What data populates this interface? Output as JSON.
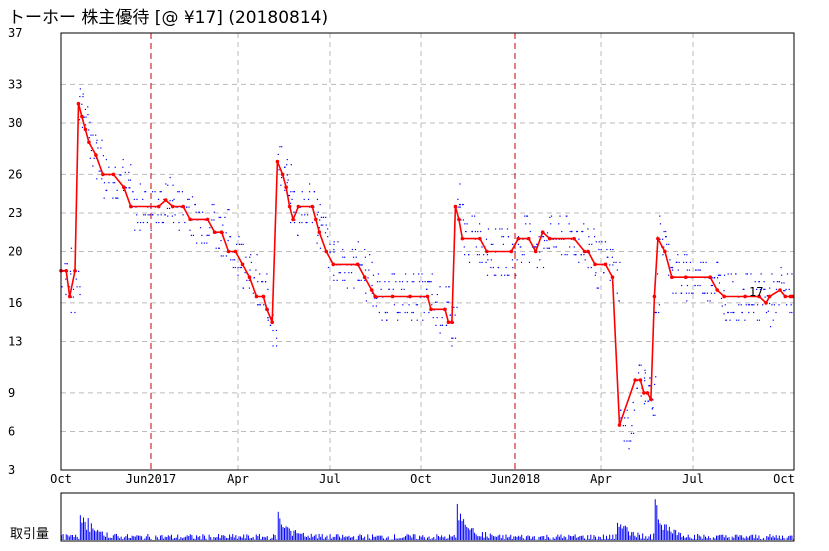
{
  "title": "トーホー 株主優待 [@ ¥17] (20180814)",
  "chart_data": {
    "type": "line",
    "title": "トーホー 株主優待 [@ ¥17] (20180814)",
    "ylim": [
      3,
      37
    ],
    "y_ticks": [
      3,
      6,
      9,
      13,
      16,
      20,
      23,
      26,
      30,
      33,
      37
    ],
    "x_ticks": [
      "Oct",
      "Jun2017",
      "Apr",
      "Jul",
      "Oct",
      "Jun2018",
      "Apr",
      "Jul",
      "Oct"
    ],
    "grid": true,
    "volume_label": "取引量",
    "last_value_label": "17",
    "colors": {
      "line": "#ff0000",
      "dots": "#0000ff",
      "marker": "#cc0000",
      "volume": "#0000ff",
      "grid": "#bbbbbb"
    },
    "series": [
      {
        "values": [
          [
            0,
            18.5
          ],
          [
            3,
            18.5
          ],
          [
            5,
            16.5
          ],
          [
            8,
            18.5
          ],
          [
            10,
            31.5
          ],
          [
            12,
            30.5
          ],
          [
            14,
            29.5
          ],
          [
            16,
            28.5
          ],
          [
            20,
            27.5
          ],
          [
            24,
            26
          ],
          [
            30,
            26
          ],
          [
            36,
            25
          ],
          [
            40,
            23.5
          ],
          [
            56,
            23.5
          ],
          [
            60,
            24
          ],
          [
            64,
            23.5
          ],
          [
            70,
            23.5
          ],
          [
            74,
            22.5
          ],
          [
            84,
            22.5
          ],
          [
            88,
            21.5
          ],
          [
            92,
            21.5
          ],
          [
            96,
            20
          ],
          [
            100,
            20
          ],
          [
            104,
            19
          ],
          [
            108,
            18
          ],
          [
            112,
            16.5
          ],
          [
            116,
            16.5
          ],
          [
            118,
            15.5
          ],
          [
            121,
            14.5
          ],
          [
            124,
            27
          ],
          [
            127,
            26
          ],
          [
            129,
            25
          ],
          [
            131,
            23.5
          ],
          [
            133,
            22.5
          ],
          [
            136,
            23.5
          ],
          [
            144,
            23.5
          ],
          [
            146,
            22.5
          ],
          [
            148,
            21.5
          ],
          [
            152,
            20
          ],
          [
            156,
            19
          ],
          [
            170,
            19
          ],
          [
            174,
            18
          ],
          [
            178,
            17
          ],
          [
            180,
            16.5
          ],
          [
            190,
            16.5
          ],
          [
            200,
            16.5
          ],
          [
            210,
            16.5
          ],
          [
            212,
            15.5
          ],
          [
            220,
            15.5
          ],
          [
            222,
            14.5
          ],
          [
            224,
            14.5
          ],
          [
            226,
            23.5
          ],
          [
            228,
            22.5
          ],
          [
            230,
            21
          ],
          [
            240,
            21
          ],
          [
            244,
            20
          ],
          [
            258,
            20
          ],
          [
            262,
            21
          ],
          [
            268,
            21
          ],
          [
            272,
            20
          ],
          [
            276,
            21.5
          ],
          [
            280,
            21
          ],
          [
            294,
            21
          ],
          [
            300,
            20
          ],
          [
            302,
            20
          ],
          [
            306,
            19
          ],
          [
            312,
            19
          ],
          [
            316,
            18
          ],
          [
            320,
            6.5
          ],
          [
            329,
            10
          ],
          [
            332,
            10
          ],
          [
            334,
            9
          ],
          [
            336,
            9
          ],
          [
            338,
            8.5
          ],
          [
            340,
            16.5
          ],
          [
            342,
            21
          ],
          [
            346,
            20
          ],
          [
            350,
            18
          ],
          [
            358,
            18
          ],
          [
            372,
            18
          ],
          [
            376,
            17
          ],
          [
            380,
            16.5
          ],
          [
            392,
            16.5
          ],
          [
            400,
            16.5
          ],
          [
            404,
            16
          ],
          [
            406,
            16.5
          ],
          [
            412,
            17
          ],
          [
            415,
            16.5
          ],
          [
            418,
            16.5
          ],
          [
            419,
            16.5
          ]
        ]
      }
    ]
  }
}
